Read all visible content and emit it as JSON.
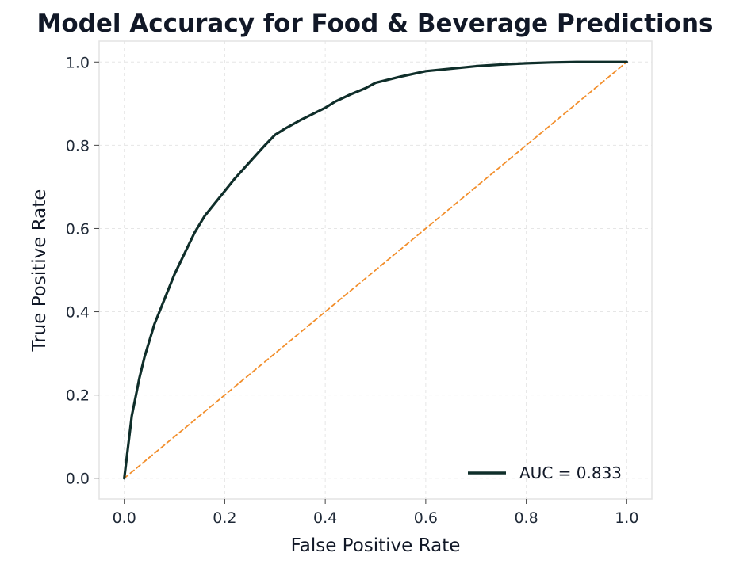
{
  "chart_data": {
    "type": "line",
    "title": "Model Accuracy for Food & Beverage Predictions",
    "xlabel": "False Positive Rate",
    "ylabel": "True Positive Rate",
    "xlim": [
      -0.05,
      1.05
    ],
    "ylim": [
      -0.05,
      1.05
    ],
    "xticks": [
      0.0,
      0.2,
      0.4,
      0.6,
      0.8,
      1.0
    ],
    "yticks": [
      0.0,
      0.2,
      0.4,
      0.6,
      0.8,
      1.0
    ],
    "xtick_labels": [
      "0.0",
      "0.2",
      "0.4",
      "0.6",
      "0.8",
      "1.0"
    ],
    "ytick_labels": [
      "0.0",
      "0.2",
      "0.4",
      "0.6",
      "0.8",
      "1.0"
    ],
    "grid": true,
    "legend_position": "lower-right",
    "series": [
      {
        "name": "AUC = 0.833",
        "style": "solid",
        "color": "#0f2e2a",
        "x": [
          0.0,
          0.005,
          0.01,
          0.015,
          0.02,
          0.025,
          0.03,
          0.04,
          0.05,
          0.06,
          0.07,
          0.08,
          0.09,
          0.1,
          0.12,
          0.14,
          0.16,
          0.18,
          0.2,
          0.22,
          0.25,
          0.28,
          0.3,
          0.32,
          0.35,
          0.38,
          0.4,
          0.42,
          0.45,
          0.48,
          0.5,
          0.55,
          0.6,
          0.65,
          0.7,
          0.75,
          0.8,
          0.85,
          0.9,
          0.95,
          1.0
        ],
        "y": [
          0.0,
          0.05,
          0.1,
          0.15,
          0.18,
          0.21,
          0.24,
          0.29,
          0.33,
          0.37,
          0.4,
          0.43,
          0.46,
          0.49,
          0.54,
          0.59,
          0.63,
          0.66,
          0.69,
          0.72,
          0.76,
          0.8,
          0.825,
          0.84,
          0.86,
          0.878,
          0.89,
          0.905,
          0.922,
          0.937,
          0.95,
          0.965,
          0.978,
          0.984,
          0.99,
          0.994,
          0.997,
          0.999,
          1.0,
          1.0,
          1.0
        ]
      },
      {
        "name": "",
        "style": "dashed",
        "color": "#f28e2b",
        "x": [
          0.0,
          1.0
        ],
        "y": [
          0.0,
          1.0
        ]
      }
    ],
    "legend": [
      {
        "label": "AUC = 0.833",
        "color": "#0f2e2a"
      }
    ]
  }
}
